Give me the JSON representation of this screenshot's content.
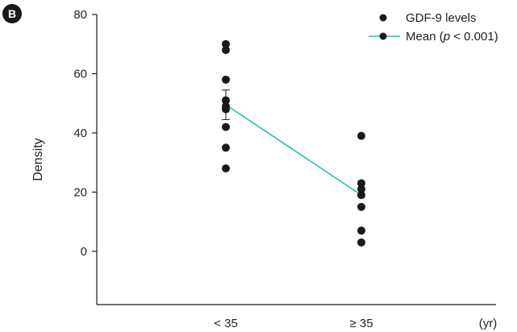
{
  "panel_label": "B",
  "chart_data": {
    "type": "scatter",
    "title": "",
    "xlabel": "",
    "ylabel": "Density",
    "x_unit": "(yr)",
    "categories": [
      "< 35",
      "≥ 35"
    ],
    "ylim": [
      -18,
      80
    ],
    "yticks": [
      0,
      20,
      40,
      60,
      80
    ],
    "grid": false,
    "legend_position": "top-right",
    "series": [
      {
        "name": "GDF-9 levels",
        "kind": "points",
        "color": "#1a1a1a",
        "points": [
          {
            "category": "< 35",
            "values": [
              70,
              68,
              58,
              51,
              49,
              48,
              42,
              35,
              28
            ]
          },
          {
            "category": "≥ 35",
            "values": [
              39,
              23,
              21,
              19,
              15,
              7,
              3
            ]
          }
        ]
      },
      {
        "name": "Mean (p < 0.001)",
        "kind": "line",
        "color": "#2bb5b0",
        "values": [
          49.5,
          19
        ],
        "error": [
          5,
          0
        ]
      }
    ]
  }
}
